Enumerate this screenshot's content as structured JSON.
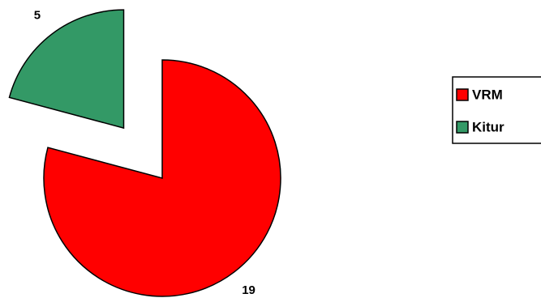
{
  "chart_data": {
    "type": "pie",
    "categories": [
      "VRM",
      "Kitur"
    ],
    "values": [
      19,
      5
    ],
    "colors": [
      "#ff0000",
      "#339966"
    ],
    "legend": "right"
  }
}
